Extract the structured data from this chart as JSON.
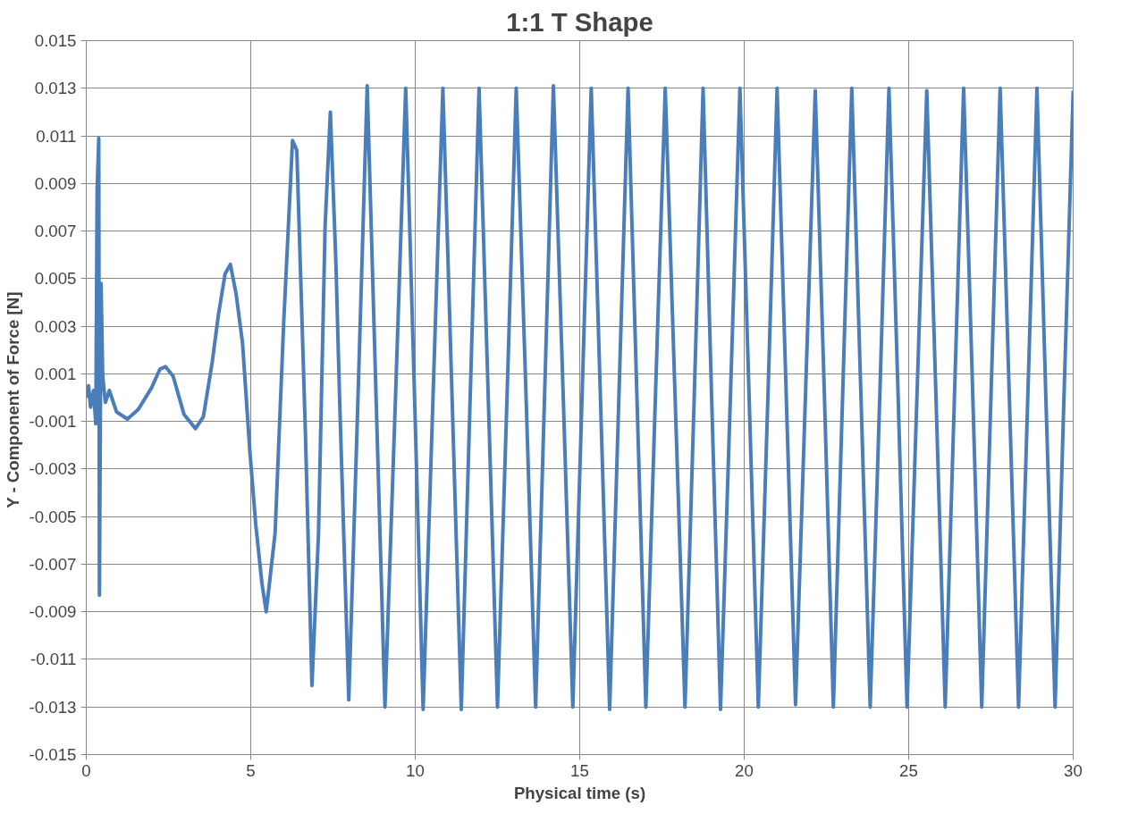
{
  "chart_data": {
    "type": "line",
    "title": "1:1 T Shape",
    "xlabel": "Physical time (s)",
    "ylabel": "Y - Component of Force  [N]",
    "xlim": [
      0,
      30
    ],
    "ylim": [
      -0.015,
      0.015
    ],
    "xticks": [
      0,
      5,
      10,
      15,
      20,
      25,
      30
    ],
    "yticks": [
      -0.015,
      -0.013,
      -0.011,
      -0.009,
      -0.007,
      -0.005,
      -0.003,
      -0.001,
      0.001,
      0.003,
      0.005,
      0.007,
      0.009,
      0.011,
      0.013,
      0.015
    ],
    "grid": true,
    "marker": "none",
    "line_style": "solid",
    "series": [
      {
        "color": "#4a7ebb",
        "x": [
          0.0,
          0.07,
          0.13,
          0.22,
          0.29,
          0.33,
          0.38,
          0.4,
          0.45,
          0.5,
          0.58,
          0.7,
          0.92,
          1.25,
          1.58,
          1.98,
          2.24,
          2.41,
          2.64,
          2.97,
          3.32,
          3.56,
          3.83,
          4.02,
          4.22,
          4.38,
          4.55,
          4.75,
          4.97,
          5.15,
          5.34,
          5.47,
          5.74,
          6.0,
          6.27,
          6.4,
          6.66,
          6.86,
          7.06,
          7.26,
          7.42,
          7.59,
          7.7,
          7.98,
          8.26,
          8.54,
          8.81,
          9.08,
          9.4,
          9.71,
          9.98,
          10.24,
          10.54,
          10.84,
          11.12,
          11.4,
          11.67,
          11.94,
          12.22,
          12.5,
          12.79,
          13.07,
          13.37,
          13.66,
          13.93,
          14.2,
          14.5,
          14.79,
          15.07,
          15.35,
          15.63,
          15.91,
          16.19,
          16.47,
          16.74,
          17.01,
          17.3,
          17.6,
          17.9,
          18.2,
          18.48,
          18.75,
          19.01,
          19.28,
          19.58,
          19.87,
          20.15,
          20.43,
          20.72,
          21.0,
          21.28,
          21.56,
          21.86,
          22.16,
          22.44,
          22.71,
          22.99,
          23.27,
          23.55,
          23.83,
          24.12,
          24.4,
          24.68,
          24.95,
          25.25,
          25.55,
          25.83,
          26.11,
          26.39,
          26.67,
          26.95,
          27.22,
          27.5,
          27.78,
          28.06,
          28.34,
          28.62,
          28.9,
          29.17,
          29.45,
          29.72,
          30.0
        ],
        "values": [
          0.0,
          0.0005,
          -0.0004,
          0.0003,
          -0.0011,
          0.0087,
          0.0109,
          -0.0083,
          0.0048,
          0.0009,
          -0.0002,
          0.0003,
          -0.0006,
          -0.0009,
          -0.0005,
          0.0004,
          0.0012,
          0.0013,
          0.0009,
          -0.0007,
          -0.0013,
          -0.0008,
          0.0015,
          0.0035,
          0.0052,
          0.0056,
          0.0044,
          0.0023,
          -0.0022,
          -0.0053,
          -0.0078,
          -0.009,
          -0.0057,
          0.0031,
          0.0108,
          0.0104,
          -0.0014,
          -0.0121,
          -0.0057,
          0.0072,
          0.012,
          0.0056,
          0.0,
          -0.0127,
          0.0,
          0.0131,
          0.0,
          -0.013,
          0.0,
          0.013,
          0.0,
          -0.0131,
          0.0,
          0.013,
          0.0,
          -0.0131,
          0.0,
          0.013,
          0.0,
          -0.013,
          0.0,
          0.013,
          0.0,
          -0.013,
          0.0,
          0.0131,
          0.0,
          -0.013,
          0.0,
          0.013,
          0.0,
          -0.0131,
          0.0,
          0.013,
          0.0,
          -0.013,
          0.0,
          0.013,
          0.0,
          -0.013,
          0.0,
          0.013,
          0.0,
          -0.0131,
          0.0,
          0.013,
          0.0,
          -0.013,
          0.0,
          0.013,
          0.0,
          -0.0129,
          0.0,
          0.0129,
          0.0,
          -0.013,
          0.0,
          0.013,
          0.0,
          -0.013,
          0.0,
          0.013,
          0.0,
          -0.013,
          0.0,
          0.0129,
          0.0,
          -0.013,
          0.0,
          0.013,
          0.0,
          -0.013,
          0.0,
          0.013,
          0.0,
          -0.013,
          0.0,
          0.013,
          0.0,
          -0.013,
          0.0,
          0.0129
        ]
      }
    ]
  }
}
